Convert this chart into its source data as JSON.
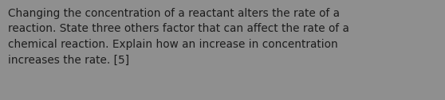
{
  "text": "Changing the concentration of a reactant alters the rate of a\nreaction. State three others factor that can affect the rate of a\nchemical reaction. Explain how an increase in concentration\nincreases the rate. [5]",
  "background_color": "#8f8f8f",
  "text_color": "#1c1c1c",
  "font_size": 9.8,
  "fig_width": 5.58,
  "fig_height": 1.26,
  "dpi": 100
}
